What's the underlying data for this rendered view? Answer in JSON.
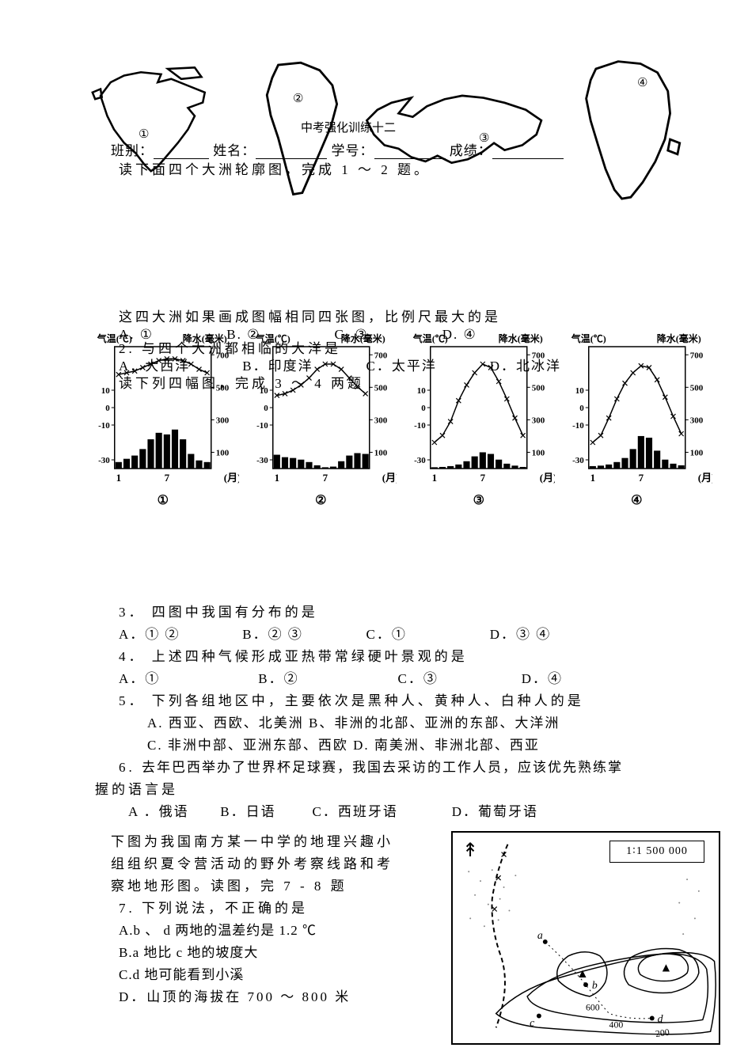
{
  "header": {
    "title": "中考强化训练十二",
    "form_labels": {
      "class": "班别：",
      "name": "姓名：",
      "id": "学号：",
      "score": "成绩："
    },
    "intro": "读下面四个大洲轮廓图，完成 1 ～ 2 题。"
  },
  "continents": {
    "panels": [
      "①",
      "②",
      "③",
      "④"
    ],
    "outline_color": "#000000",
    "fill_color": "#ffffff"
  },
  "q1": {
    "text": "这四大洲如果画成图幅相同四张图，比例尺最大的是",
    "opts": {
      "a": "A. ①",
      "b": "B. ②",
      "c": "C. ③",
      "d": "D. ④"
    }
  },
  "q2": {
    "num": "2.",
    "text": "与四个大洲都相临的大洋是",
    "opts": {
      "a": "A．大西洋",
      "b": "B．印度洋",
      "c": "C．太平洋",
      "d": "D．北冰洋"
    },
    "intro": "读下列四幅图，完成 3 ～ 4 两题"
  },
  "climate": {
    "type": "climate-bar-line",
    "axis_left_label": "气温(℃)",
    "axis_right_label": "降水(毫米)",
    "x_label": "(月)",
    "x_ticks": [
      1,
      7
    ],
    "temp_yticks": [
      -30,
      -10,
      0,
      10
    ],
    "precip_yticks": [
      100,
      300,
      500,
      700
    ],
    "temp_range": [
      -35,
      35
    ],
    "precip_range": [
      0,
      750
    ],
    "line_color": "#000000",
    "bar_color": "#000000",
    "grid_color": "#000000",
    "background_color": "#ffffff",
    "panels": [
      {
        "id": "①",
        "temp": [
          19,
          20,
          21,
          23,
          25,
          27,
          28,
          28,
          27,
          25,
          22,
          20
        ],
        "precip": [
          40,
          60,
          80,
          120,
          180,
          220,
          210,
          240,
          180,
          90,
          50,
          40
        ]
      },
      {
        "id": "②",
        "temp": [
          7,
          8,
          10,
          13,
          17,
          22,
          25,
          25,
          22,
          17,
          12,
          8
        ],
        "precip": [
          85,
          70,
          65,
          55,
          40,
          20,
          8,
          12,
          45,
          80,
          95,
          90
        ]
      },
      {
        "id": "③",
        "temp": [
          -20,
          -16,
          -8,
          4,
          13,
          20,
          25,
          23,
          15,
          5,
          -6,
          -16
        ],
        "precip": [
          8,
          10,
          15,
          25,
          45,
          75,
          100,
          90,
          55,
          30,
          18,
          10
        ]
      },
      {
        "id": "④",
        "temp": [
          -20,
          -16,
          -6,
          5,
          14,
          20,
          24,
          23,
          16,
          6,
          -5,
          -15
        ],
        "precip": [
          15,
          18,
          25,
          40,
          65,
          120,
          200,
          190,
          110,
          55,
          30,
          20
        ]
      }
    ],
    "axis_fontsize": 11,
    "title_fontsize": 12,
    "line_width": 1.5,
    "bar_width": 0.8
  },
  "q3": {
    "num": "3．",
    "text": "四图中我国有分布的是",
    "opts": {
      "a": "A．① ②",
      "b": "B．② ③",
      "c": "C．①",
      "d": "D．③ ④"
    }
  },
  "q4": {
    "num": "4．",
    "text": "上述四种气候形成亚热带常绿硬叶景观的是",
    "opts": {
      "a": "A．①",
      "b": "B．②",
      "c": "C．③",
      "d": "D．④"
    }
  },
  "q5": {
    "num": "5．",
    "text": "下列各组地区中，主要依次是黑种人、黄种人、白种人的是",
    "opts": {
      "a": "A. 西亚、西欧、北美洲",
      "b": "B、非洲的北部、亚洲的东部、大洋洲",
      "c": "C. 非洲中部、亚洲东部、西欧",
      "d": "D. 南美洲、非洲北部、西亚"
    }
  },
  "q6": {
    "num": "6.",
    "text1": "去年巴西举办了世界杯足球赛，我国去采访的工作人员，应该优先熟练掌",
    "text2": "握的语言是",
    "opts": {
      "a": "A ．俄语",
      "b": "B．日语",
      "c": "C．西班牙语",
      "d": "D．葡萄牙语"
    }
  },
  "topo_intro": {
    "l1": "下图为我国南方某一中学的地理兴趣小",
    "l2": "组组织夏令营活动的野外考察线路和考",
    "l3": "察地地形图。读图，完 7 - 8 题"
  },
  "q7": {
    "num": "7.",
    "text": "下列说法，不正确的是",
    "opts": {
      "a": "A.b 、 d 两地的温差约是 1.2 ℃",
      "b": "B.a 地比 c 地的坡度大",
      "c": "C.d 地可能看到小溪",
      "d": "D．山顶的海拔在 700 ～ 800 米"
    }
  },
  "topo_map": {
    "type": "contour-map",
    "scale_text": "1∶1 500 000",
    "n_arrow": "↟",
    "contour_values": [
      200,
      400,
      600,
      600
    ],
    "contour_color": "#000000",
    "river_color": "#000000",
    "peak_symbol": "▲",
    "point_labels": [
      "a",
      "b",
      "c",
      "d"
    ],
    "background_color": "#ffffff",
    "stipple_color": "#7a7a7a"
  }
}
